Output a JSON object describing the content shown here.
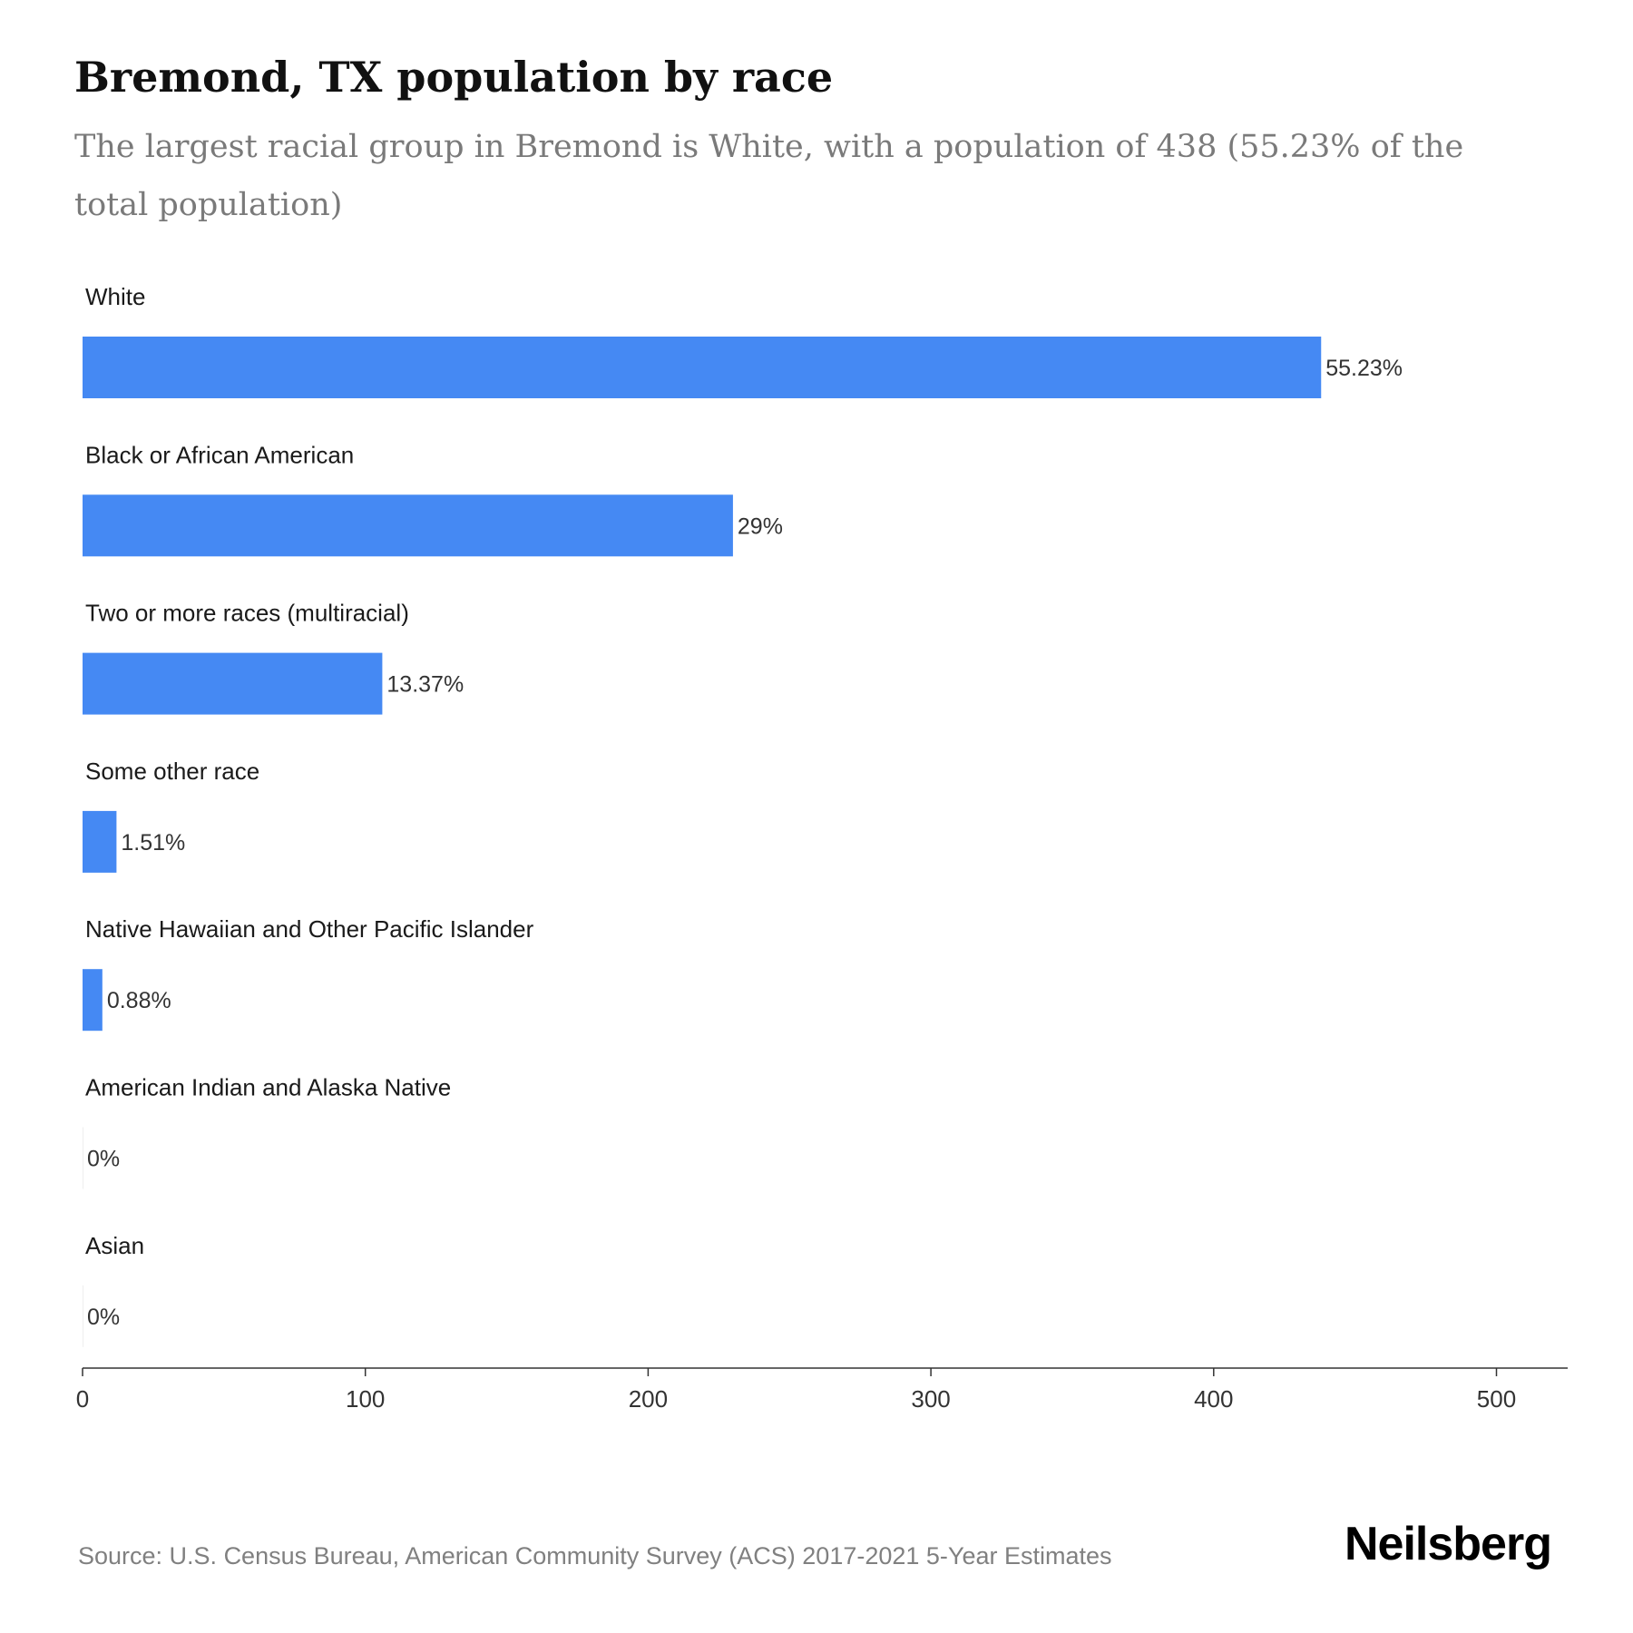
{
  "chart_data": {
    "type": "bar",
    "orientation": "horizontal",
    "title": "Bremond, TX population by race",
    "subtitle": "The largest racial group in Bremond is White, with a population of 438 (55.23% of the total population)",
    "categories": [
      "White",
      "Black or African American",
      "Two or more races (multiracial)",
      "Some other race",
      "Native Hawaiian and Other Pacific Islander",
      "American Indian and Alaska Native",
      "Asian"
    ],
    "values": [
      438,
      230,
      106,
      12,
      7,
      0,
      0
    ],
    "data_labels": [
      "55.23%",
      "29%",
      "13.37%",
      "1.51%",
      "0.88%",
      "0%",
      "0%"
    ],
    "xlim": [
      0,
      525
    ],
    "xticks": [
      0,
      100,
      200,
      300,
      400,
      500
    ],
    "xlabel": "",
    "ylabel": "",
    "grid": false,
    "bar_color": "#4589f3"
  },
  "footer": {
    "source": "Source: U.S. Census Bureau, American Community Survey (ACS) 2017-2021 5-Year Estimates",
    "brand": "Neilsberg"
  }
}
